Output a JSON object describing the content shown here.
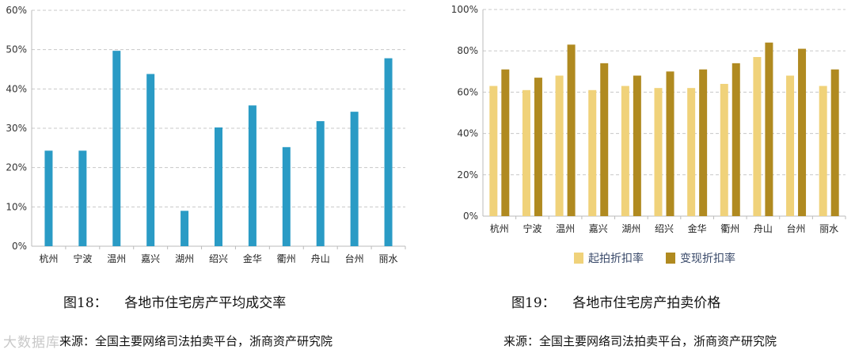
{
  "chart_data": [
    {
      "type": "bar",
      "categories": [
        "杭州",
        "宁波",
        "温州",
        "嘉兴",
        "湖州",
        "绍兴",
        "金华",
        "衢州",
        "舟山",
        "台州",
        "丽水"
      ],
      "series": [
        {
          "values": [
            24.3,
            24.3,
            49.7,
            43.8,
            9.0,
            30.2,
            35.8,
            25.2,
            31.8,
            34.2,
            47.8
          ]
        }
      ],
      "ylim": [
        0,
        60
      ],
      "ytick_labels": [
        "0%",
        "10%",
        "20%",
        "30%",
        "40%",
        "50%",
        "60%"
      ],
      "grid": true,
      "legend": "none",
      "colors": [
        "#2a9bc5"
      ]
    },
    {
      "type": "bar",
      "categories": [
        "杭州",
        "宁波",
        "温州",
        "嘉兴",
        "湖州",
        "绍兴",
        "金华",
        "衢州",
        "舟山",
        "台州",
        "丽水"
      ],
      "series": [
        {
          "name": "起拍折扣率",
          "values": [
            63,
            61,
            68,
            61,
            63,
            62,
            62,
            64,
            77,
            68,
            63
          ]
        },
        {
          "name": "变现折扣率",
          "values": [
            71,
            67,
            83,
            74,
            68,
            70,
            71,
            74,
            84,
            81,
            71
          ]
        }
      ],
      "ylim": [
        0,
        100
      ],
      "ytick_labels": [
        "0%",
        "20%",
        "40%",
        "60%",
        "80%",
        "100%"
      ],
      "grid": true,
      "legend": "bottom",
      "colors": [
        "#f0d27a",
        "#b08a20"
      ]
    }
  ],
  "figures": {
    "left_title": "图18：    各地市住宅房产平均成交率",
    "left_source": "来源：全国主要网络司法拍卖平台，浙商资产研究院",
    "right_title": "图19：    各地市住宅房产拍卖价格",
    "right_source": "来源：全国主要网络司法拍卖平台，浙商资产研究院"
  },
  "watermark": "大数据库"
}
